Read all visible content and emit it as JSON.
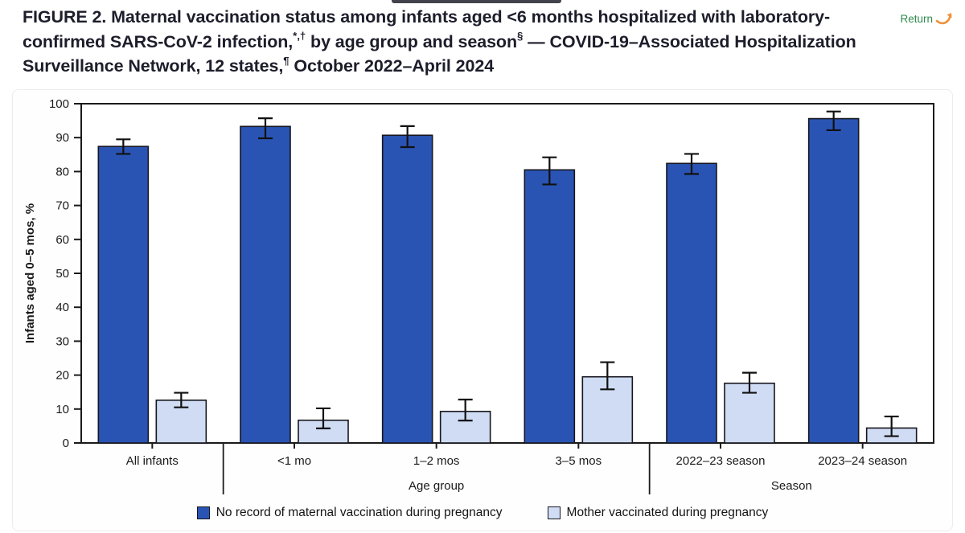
{
  "header": {
    "title": {
      "label": "FIGURE 2",
      "segments": [
        {
          "text": ". Maternal vaccination status among infants aged <6 months hospitalized with laboratory-confirmed SARS-CoV-2 infection,"
        },
        {
          "text": "*,†",
          "sup": true
        },
        {
          "text": " by age group and season"
        },
        {
          "text": "§",
          "sup": true
        },
        {
          "text": " — COVID-19–Associated Hospitalization Surveillance Network, 12 states,",
          "sup": false
        },
        {
          "text": "¶",
          "sup": true
        },
        {
          "text": " October 2022–April 2024"
        }
      ]
    },
    "return_link": {
      "label": "Return",
      "color": "#2e8b4f",
      "arrow_color": "#f0913b"
    }
  },
  "chart_data": {
    "type": "bar",
    "title": "",
    "xlabel": "",
    "ylabel": "Infants aged 0–5 mos, %",
    "ylim": [
      0,
      100
    ],
    "ytick_step": 10,
    "grid": false,
    "legend_position": "bottom",
    "error_bars": true,
    "categories": [
      "All infants",
      "<1 mo",
      "1–2 mos",
      "3–5 mos",
      "2022–23 season",
      "2023–24 season"
    ],
    "group_axes": [
      {
        "label": "Age group",
        "from": 1,
        "to": 3
      },
      {
        "label": "Season",
        "from": 4,
        "to": 5
      }
    ],
    "series": [
      {
        "name": "No record of maternal vaccination during pregnancy",
        "color": "#2a54b4",
        "values": [
          87.4,
          93.3,
          90.7,
          80.5,
          82.4,
          95.6
        ],
        "ci_low": [
          85.2,
          89.8,
          87.2,
          76.2,
          79.3,
          92.2
        ],
        "ci_high": [
          89.5,
          95.7,
          93.4,
          84.2,
          85.2,
          97.7
        ]
      },
      {
        "name": "Mother vaccinated during pregnancy",
        "color": "#cfdcf3",
        "values": [
          12.6,
          6.7,
          9.3,
          19.5,
          17.6,
          4.4
        ],
        "ci_low": [
          10.5,
          4.3,
          6.6,
          15.8,
          14.8,
          2.0
        ],
        "ci_high": [
          14.8,
          10.2,
          12.8,
          23.8,
          20.7,
          7.8
        ]
      }
    ],
    "colors": {
      "bar_outline": "#16161d",
      "axis": "#1a1a1a",
      "error_bar": "#111111"
    }
  }
}
